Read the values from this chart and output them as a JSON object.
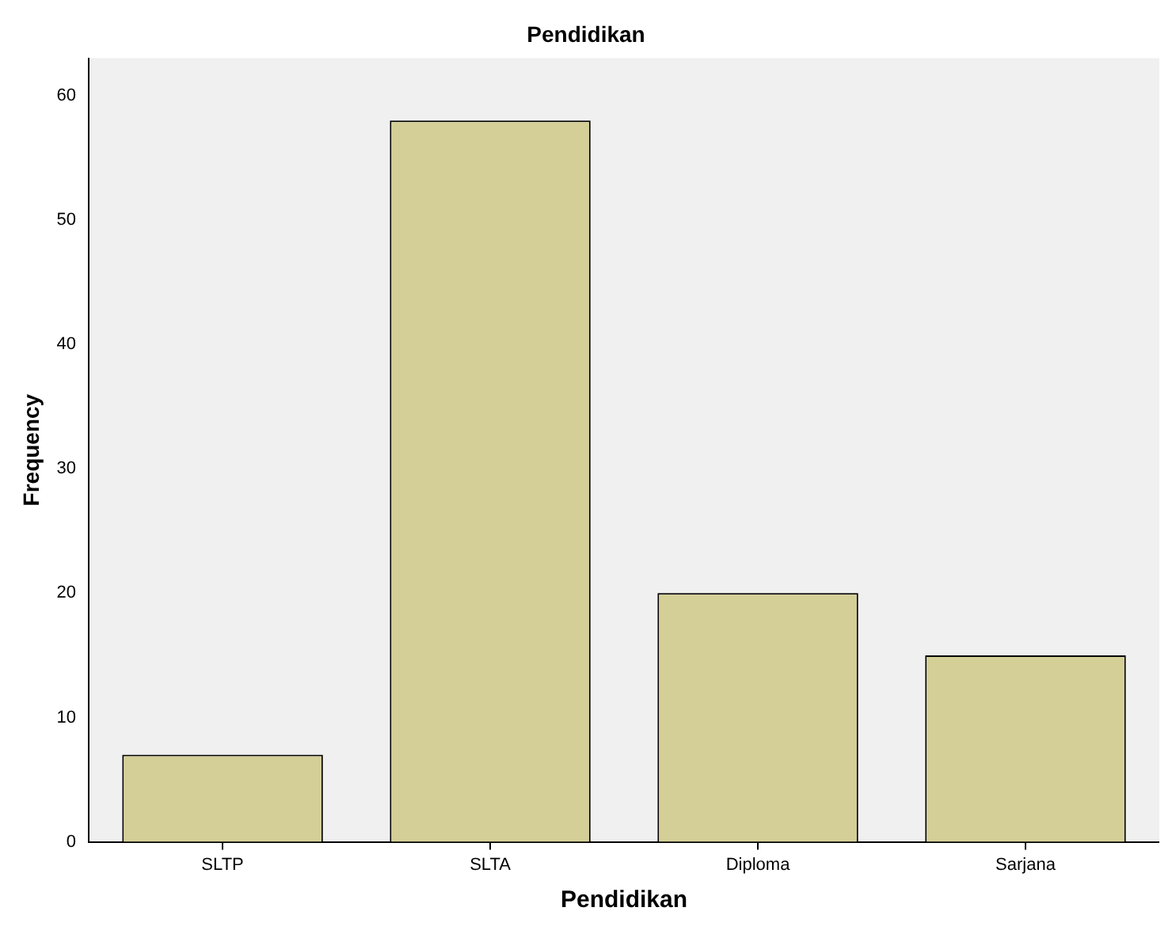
{
  "chart_data": {
    "type": "bar",
    "title": "Pendidikan",
    "xlabel": "Pendidikan",
    "ylabel": "Frequency",
    "categories": [
      "SLTP",
      "SLTA",
      "Diploma",
      "Sarjana"
    ],
    "values": [
      7,
      58,
      20,
      15
    ],
    "color": "#d4cf97",
    "ylim": [
      0,
      63
    ],
    "yticks": [
      0,
      10,
      20,
      30,
      40,
      50,
      60
    ],
    "grid": false,
    "legend": false
  }
}
